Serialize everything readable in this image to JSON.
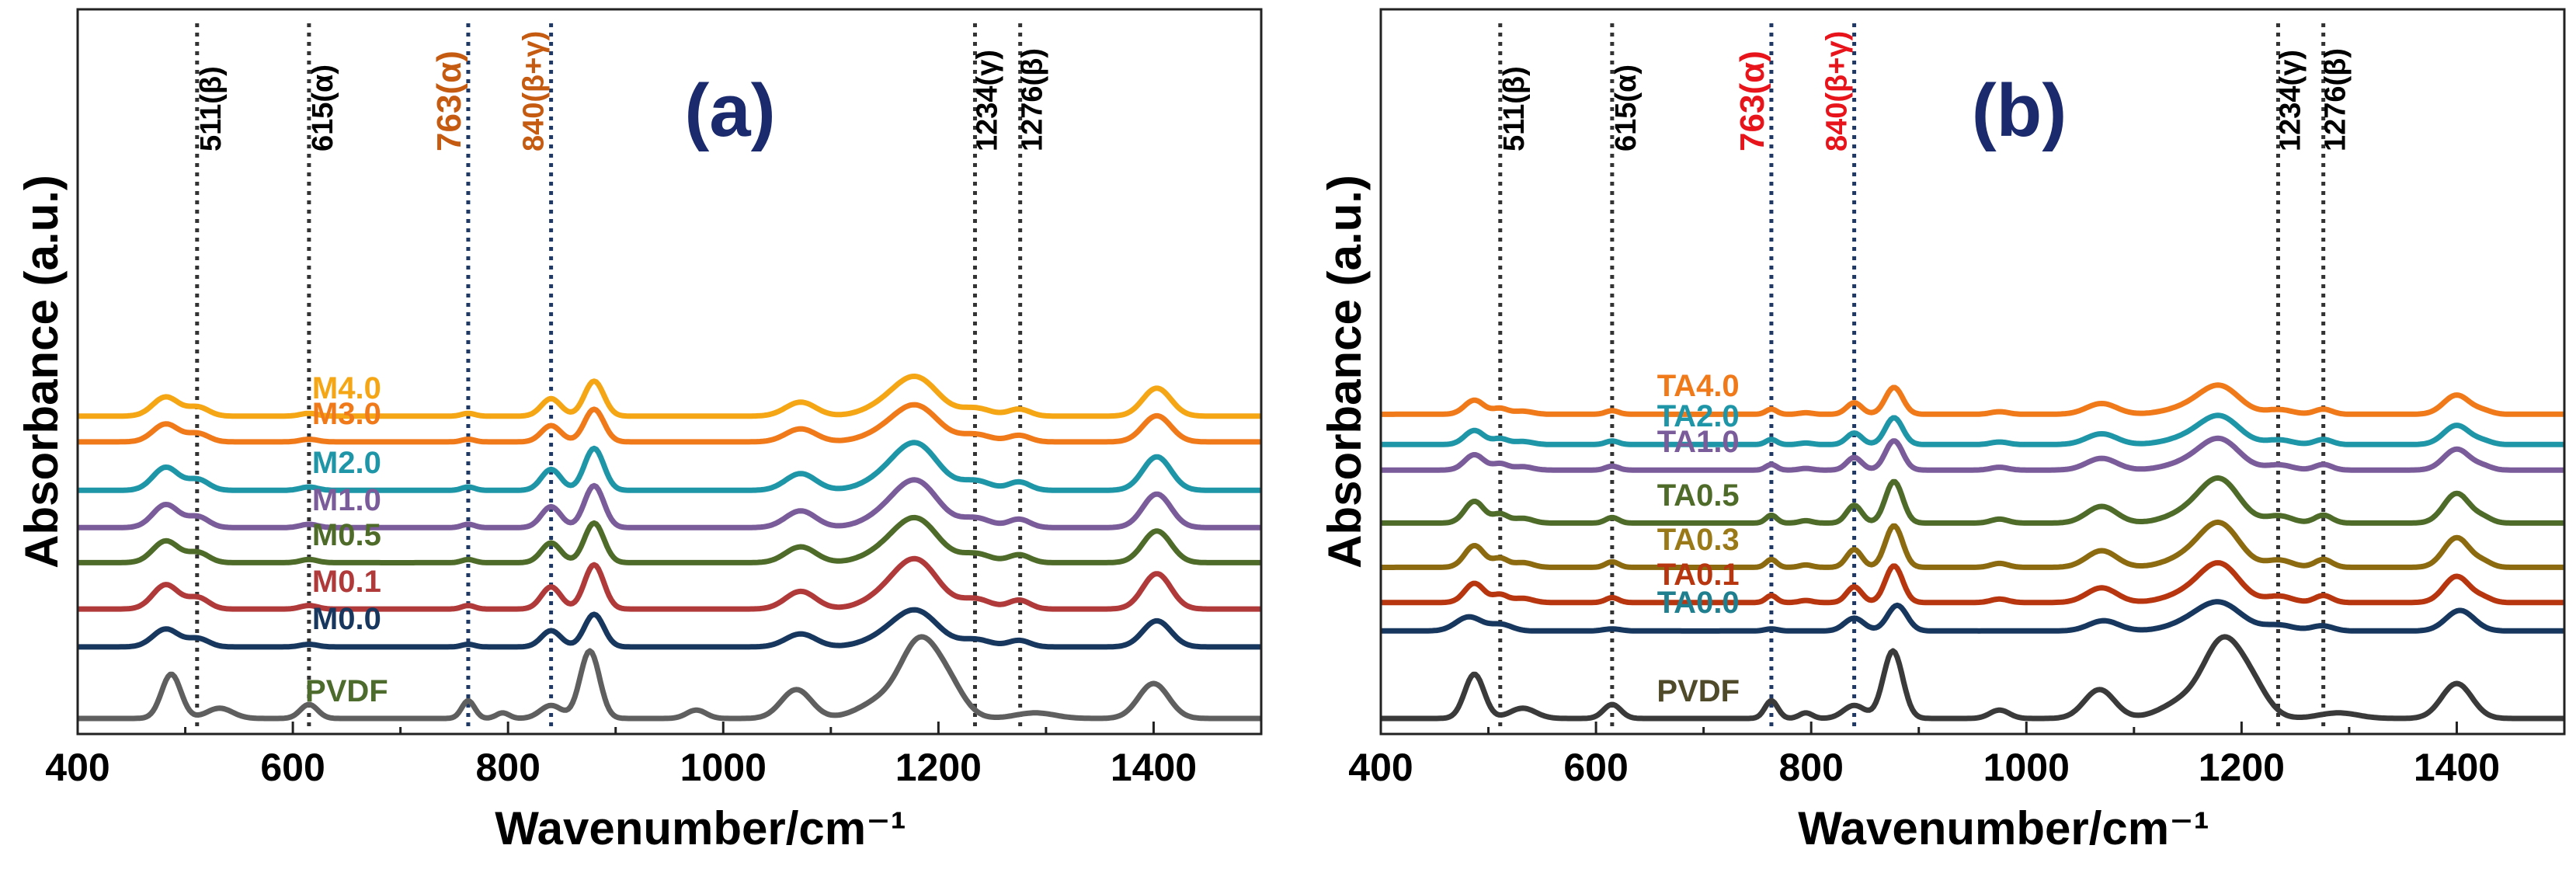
{
  "figure": {
    "ylabel": "Absorbance (a.u.)",
    "label_color": "#1A2A6C",
    "frame_color": "#222222"
  },
  "chart_data": [
    {
      "type": "line",
      "panel_label": "(a)",
      "xlabel": "Wavenumber/cm⁻¹",
      "ylabel": "Absorbance (a.u.)",
      "xlim": [
        400,
        1500
      ],
      "xticks": [
        "400",
        "600",
        "800",
        "1000",
        "1200",
        "1400"
      ],
      "xtick_values": [
        400,
        600,
        800,
        1000,
        1200,
        1400
      ],
      "grid": false,
      "peak_lines": [
        {
          "x": 511,
          "label": "511(β)",
          "color": "#000000",
          "big": false
        },
        {
          "x": 615,
          "label": "615(α)",
          "color": "#000000",
          "big": false
        },
        {
          "x": 763,
          "label": "763(α)",
          "color": "#C55A11",
          "big": true
        },
        {
          "x": 840,
          "label": "840(β+γ)",
          "color": "#C55A11",
          "big": false
        },
        {
          "x": 1234,
          "label": "1234(γ)",
          "color": "#000000",
          "big": false
        },
        {
          "x": 1276,
          "label": "1276(β)",
          "color": "#000000",
          "big": false
        }
      ],
      "series": [
        {
          "name": "PVDF",
          "color": "#5F5F5F",
          "label_color": "#4E6B2E",
          "offset": 0.0,
          "scale": 1.0,
          "profile": "pvdf"
        },
        {
          "name": "M0.0",
          "color": "#17375E",
          "label_color": "#17375E",
          "offset": 1.55,
          "scale": 0.7,
          "profile": "m"
        },
        {
          "name": "M0.1",
          "color": "#B03A3A",
          "label_color": "#B03A3A",
          "offset": 2.35,
          "scale": 0.95,
          "profile": "m"
        },
        {
          "name": "M0.5",
          "color": "#4F6B2A",
          "label_color": "#4F6B2A",
          "offset": 3.35,
          "scale": 0.85,
          "profile": "m"
        },
        {
          "name": "M1.0",
          "color": "#7A5C9A",
          "label_color": "#7A5C9A",
          "offset": 4.1,
          "scale": 0.9,
          "profile": "m"
        },
        {
          "name": "M2.0",
          "color": "#1F95A8",
          "label_color": "#1F95A8",
          "offset": 4.9,
          "scale": 0.9,
          "profile": "m"
        },
        {
          "name": "M3.0",
          "color": "#F07A1A",
          "label_color": "#F07A1A",
          "offset": 5.95,
          "scale": 0.7,
          "profile": "m"
        },
        {
          "name": "M4.0",
          "color": "#F4A614",
          "label_color": "#F4A614",
          "offset": 6.5,
          "scale": 0.75,
          "profile": "m"
        }
      ]
    },
    {
      "type": "line",
      "panel_label": "(b)",
      "xlabel": "Wavenumber/cm⁻¹",
      "ylabel": "Absorbance (a.u.)",
      "xlim": [
        400,
        1500
      ],
      "xticks": [
        "400",
        "600",
        "800",
        "1000",
        "1200",
        "1400"
      ],
      "xtick_values": [
        400,
        600,
        800,
        1000,
        1200,
        1400
      ],
      "grid": false,
      "peak_lines": [
        {
          "x": 511,
          "label": "511(β)",
          "color": "#000000",
          "big": false
        },
        {
          "x": 615,
          "label": "615(α)",
          "color": "#000000",
          "big": false
        },
        {
          "x": 763,
          "label": "763(α)",
          "color": "#E8141B",
          "big": true
        },
        {
          "x": 840,
          "label": "840(β+γ)",
          "color": "#E8141B",
          "big": false
        },
        {
          "x": 1234,
          "label": "1234(γ)",
          "color": "#000000",
          "big": false
        },
        {
          "x": 1276,
          "label": "1276(β)",
          "color": "#000000",
          "big": false
        }
      ],
      "series": [
        {
          "name": "PVDF",
          "color": "#3A3A3A",
          "label_color": "#4E4A2A",
          "offset": 0.0,
          "scale": 1.0,
          "profile": "pvdf"
        },
        {
          "name": "TA0.0",
          "color": "#17375E",
          "label_color": "#1F7F8F",
          "offset": 1.9,
          "scale": 0.55,
          "profile": "m"
        },
        {
          "name": "TA0.1",
          "color": "#B8360F",
          "label_color": "#B8360F",
          "offset": 2.5,
          "scale": 0.75,
          "profile": "ta"
        },
        {
          "name": "TA0.3",
          "color": "#8B6A10",
          "label_color": "#9A7A18",
          "offset": 3.25,
          "scale": 0.85,
          "profile": "ta"
        },
        {
          "name": "TA0.5",
          "color": "#4F6B2A",
          "label_color": "#4F6B2A",
          "offset": 4.2,
          "scale": 0.85,
          "profile": "ta"
        },
        {
          "name": "TA1.0",
          "color": "#7A5C9A",
          "label_color": "#7A5C9A",
          "offset": 5.35,
          "scale": 0.6,
          "profile": "ta"
        },
        {
          "name": "TA2.0",
          "color": "#1F95A8",
          "label_color": "#1F95A8",
          "offset": 5.9,
          "scale": 0.55,
          "profile": "ta"
        },
        {
          "name": "TA4.0",
          "color": "#F07A1A",
          "label_color": "#F07A1A",
          "offset": 6.55,
          "scale": 0.55,
          "profile": "ta"
        }
      ]
    }
  ]
}
